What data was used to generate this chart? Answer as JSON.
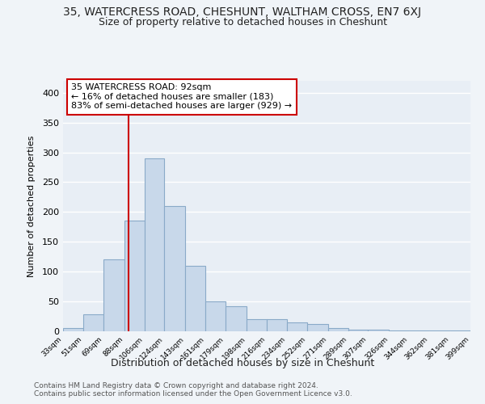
{
  "title": "35, WATERCRESS ROAD, CHESHUNT, WALTHAM CROSS, EN7 6XJ",
  "subtitle": "Size of property relative to detached houses in Cheshunt",
  "xlabel": "Distribution of detached houses by size in Cheshunt",
  "ylabel": "Number of detached properties",
  "footnote1": "Contains HM Land Registry data © Crown copyright and database right 2024.",
  "footnote2": "Contains public sector information licensed under the Open Government Licence v3.0.",
  "bin_edges": [
    33,
    51,
    69,
    88,
    106,
    124,
    143,
    161,
    179,
    198,
    216,
    234,
    252,
    271,
    289,
    307,
    326,
    344,
    362,
    381,
    399
  ],
  "bin_labels": [
    "33sqm",
    "51sqm",
    "69sqm",
    "88sqm",
    "106sqm",
    "124sqm",
    "143sqm",
    "161sqm",
    "179sqm",
    "198sqm",
    "216sqm",
    "234sqm",
    "252sqm",
    "271sqm",
    "289sqm",
    "307sqm",
    "326sqm",
    "344sqm",
    "362sqm",
    "381sqm",
    "399sqm"
  ],
  "counts": [
    5,
    28,
    120,
    185,
    290,
    210,
    110,
    50,
    42,
    20,
    20,
    15,
    12,
    5,
    3,
    3,
    2,
    1,
    1,
    1
  ],
  "bar_color": "#c8d8ea",
  "bar_edge_color": "#8aaac8",
  "property_size": 92,
  "property_line_color": "#cc0000",
  "annotation_text": "35 WATERCRESS ROAD: 92sqm\n← 16% of detached houses are smaller (183)\n83% of semi-detached houses are larger (929) →",
  "annotation_box_color": "#ffffff",
  "annotation_box_edge": "#cc0000",
  "ylim": [
    0,
    420
  ],
  "yticks": [
    0,
    50,
    100,
    150,
    200,
    250,
    300,
    350,
    400
  ],
  "background_color": "#f0f4f8",
  "plot_bg_color": "#e8eef5",
  "grid_color": "#ffffff",
  "title_fontsize": 10,
  "subtitle_fontsize": 9,
  "ann_fontsize": 8
}
